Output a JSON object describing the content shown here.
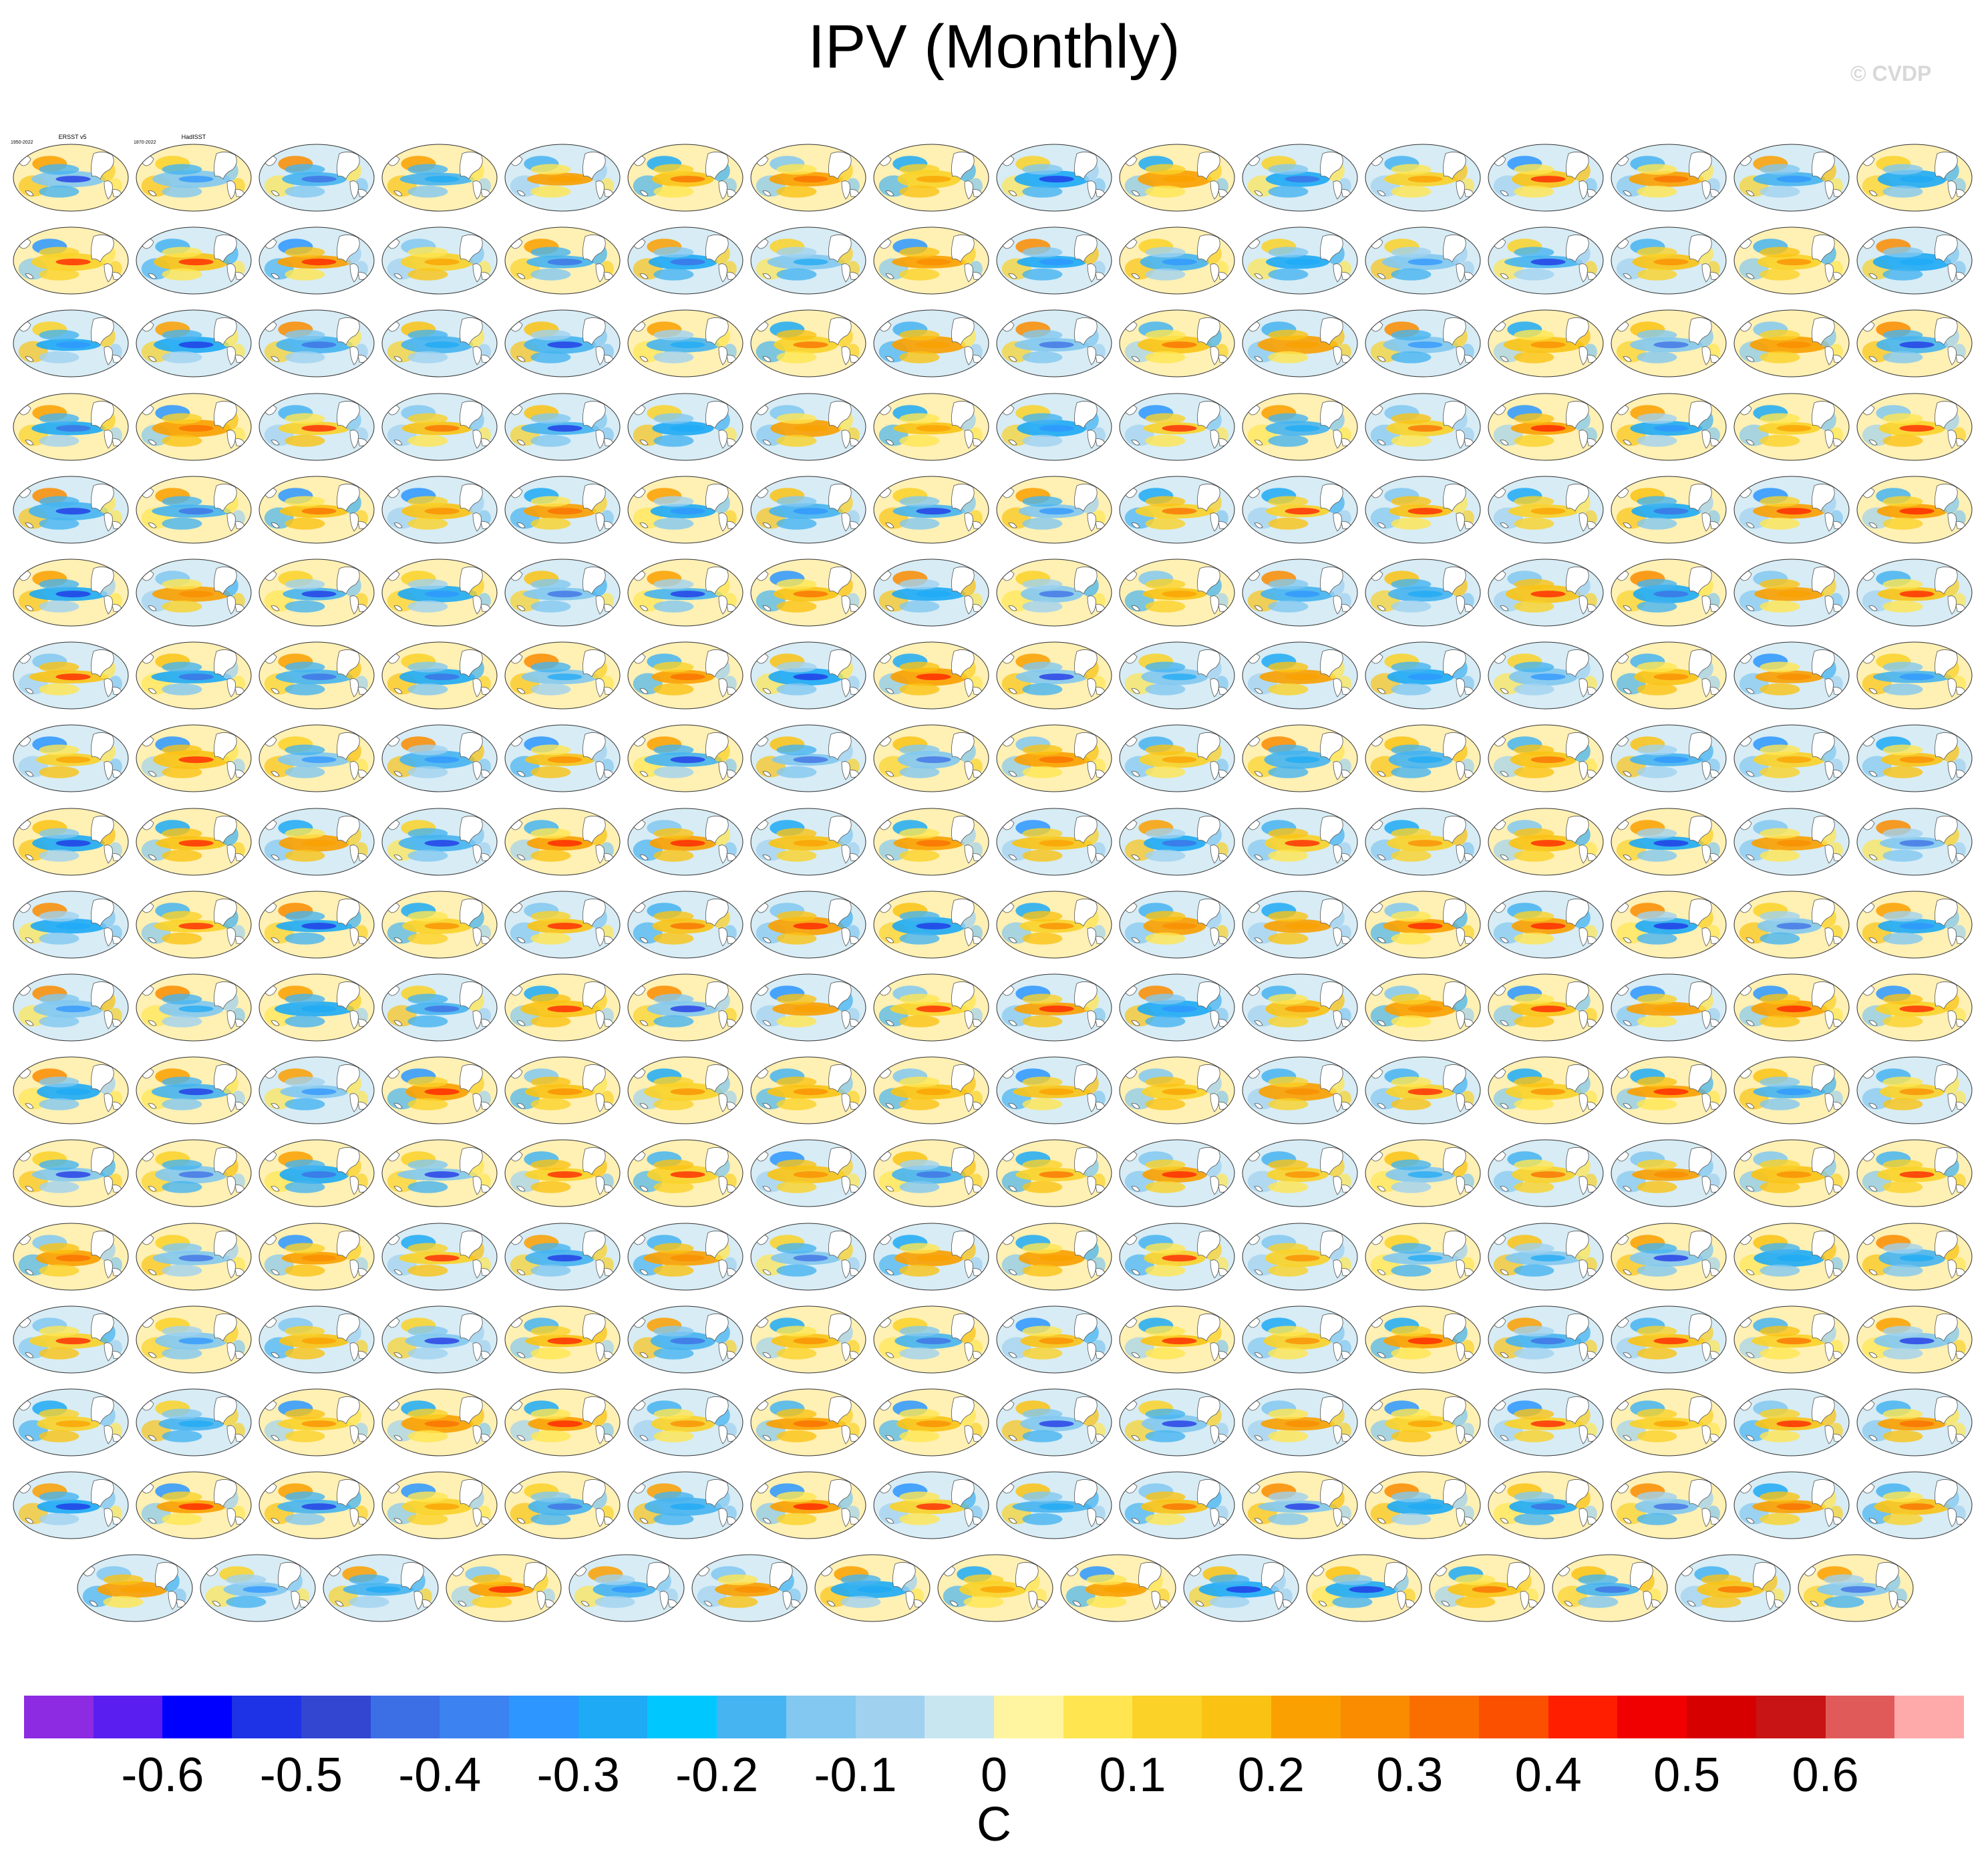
{
  "title": "IPV (Monthly)",
  "watermark": "© CVDP",
  "chart_data": {
    "type": "map-panels",
    "title": "IPV (Monthly)",
    "units": "C",
    "projection": "global ellipse map",
    "grid": {
      "rows": 18,
      "columns": 16,
      "last_row_panels": 15
    },
    "first_panels": [
      {
        "label": "ERSST v5",
        "period": "1950-2022"
      },
      {
        "label": "HadISST",
        "period": "1870-2022"
      }
    ],
    "colorbar": {
      "ticks": [
        "-0.6",
        "-0.5",
        "-0.4",
        "-0.3",
        "-0.2",
        "-0.1",
        "0",
        "0.1",
        "0.2",
        "0.3",
        "0.4",
        "0.5",
        "0.6"
      ],
      "colors": [
        "#8c2be2",
        "#5a1ef0",
        "#0000ff",
        "#1e32e6",
        "#3246d2",
        "#3c6ee6",
        "#3c82f0",
        "#2d96ff",
        "#1eaaf5",
        "#00c8ff",
        "#46b4f0",
        "#82c8f0",
        "#a0d2f0",
        "#c8e6f0",
        "#fff5a0",
        "#ffe650",
        "#fad228",
        "#fac314",
        "#faa000",
        "#fa8c00",
        "#fa6e00",
        "#fa5000",
        "#ff1e00",
        "#f00000",
        "#d70000",
        "#c81414",
        "#e15a5a",
        "#ffaaaa"
      ]
    }
  }
}
